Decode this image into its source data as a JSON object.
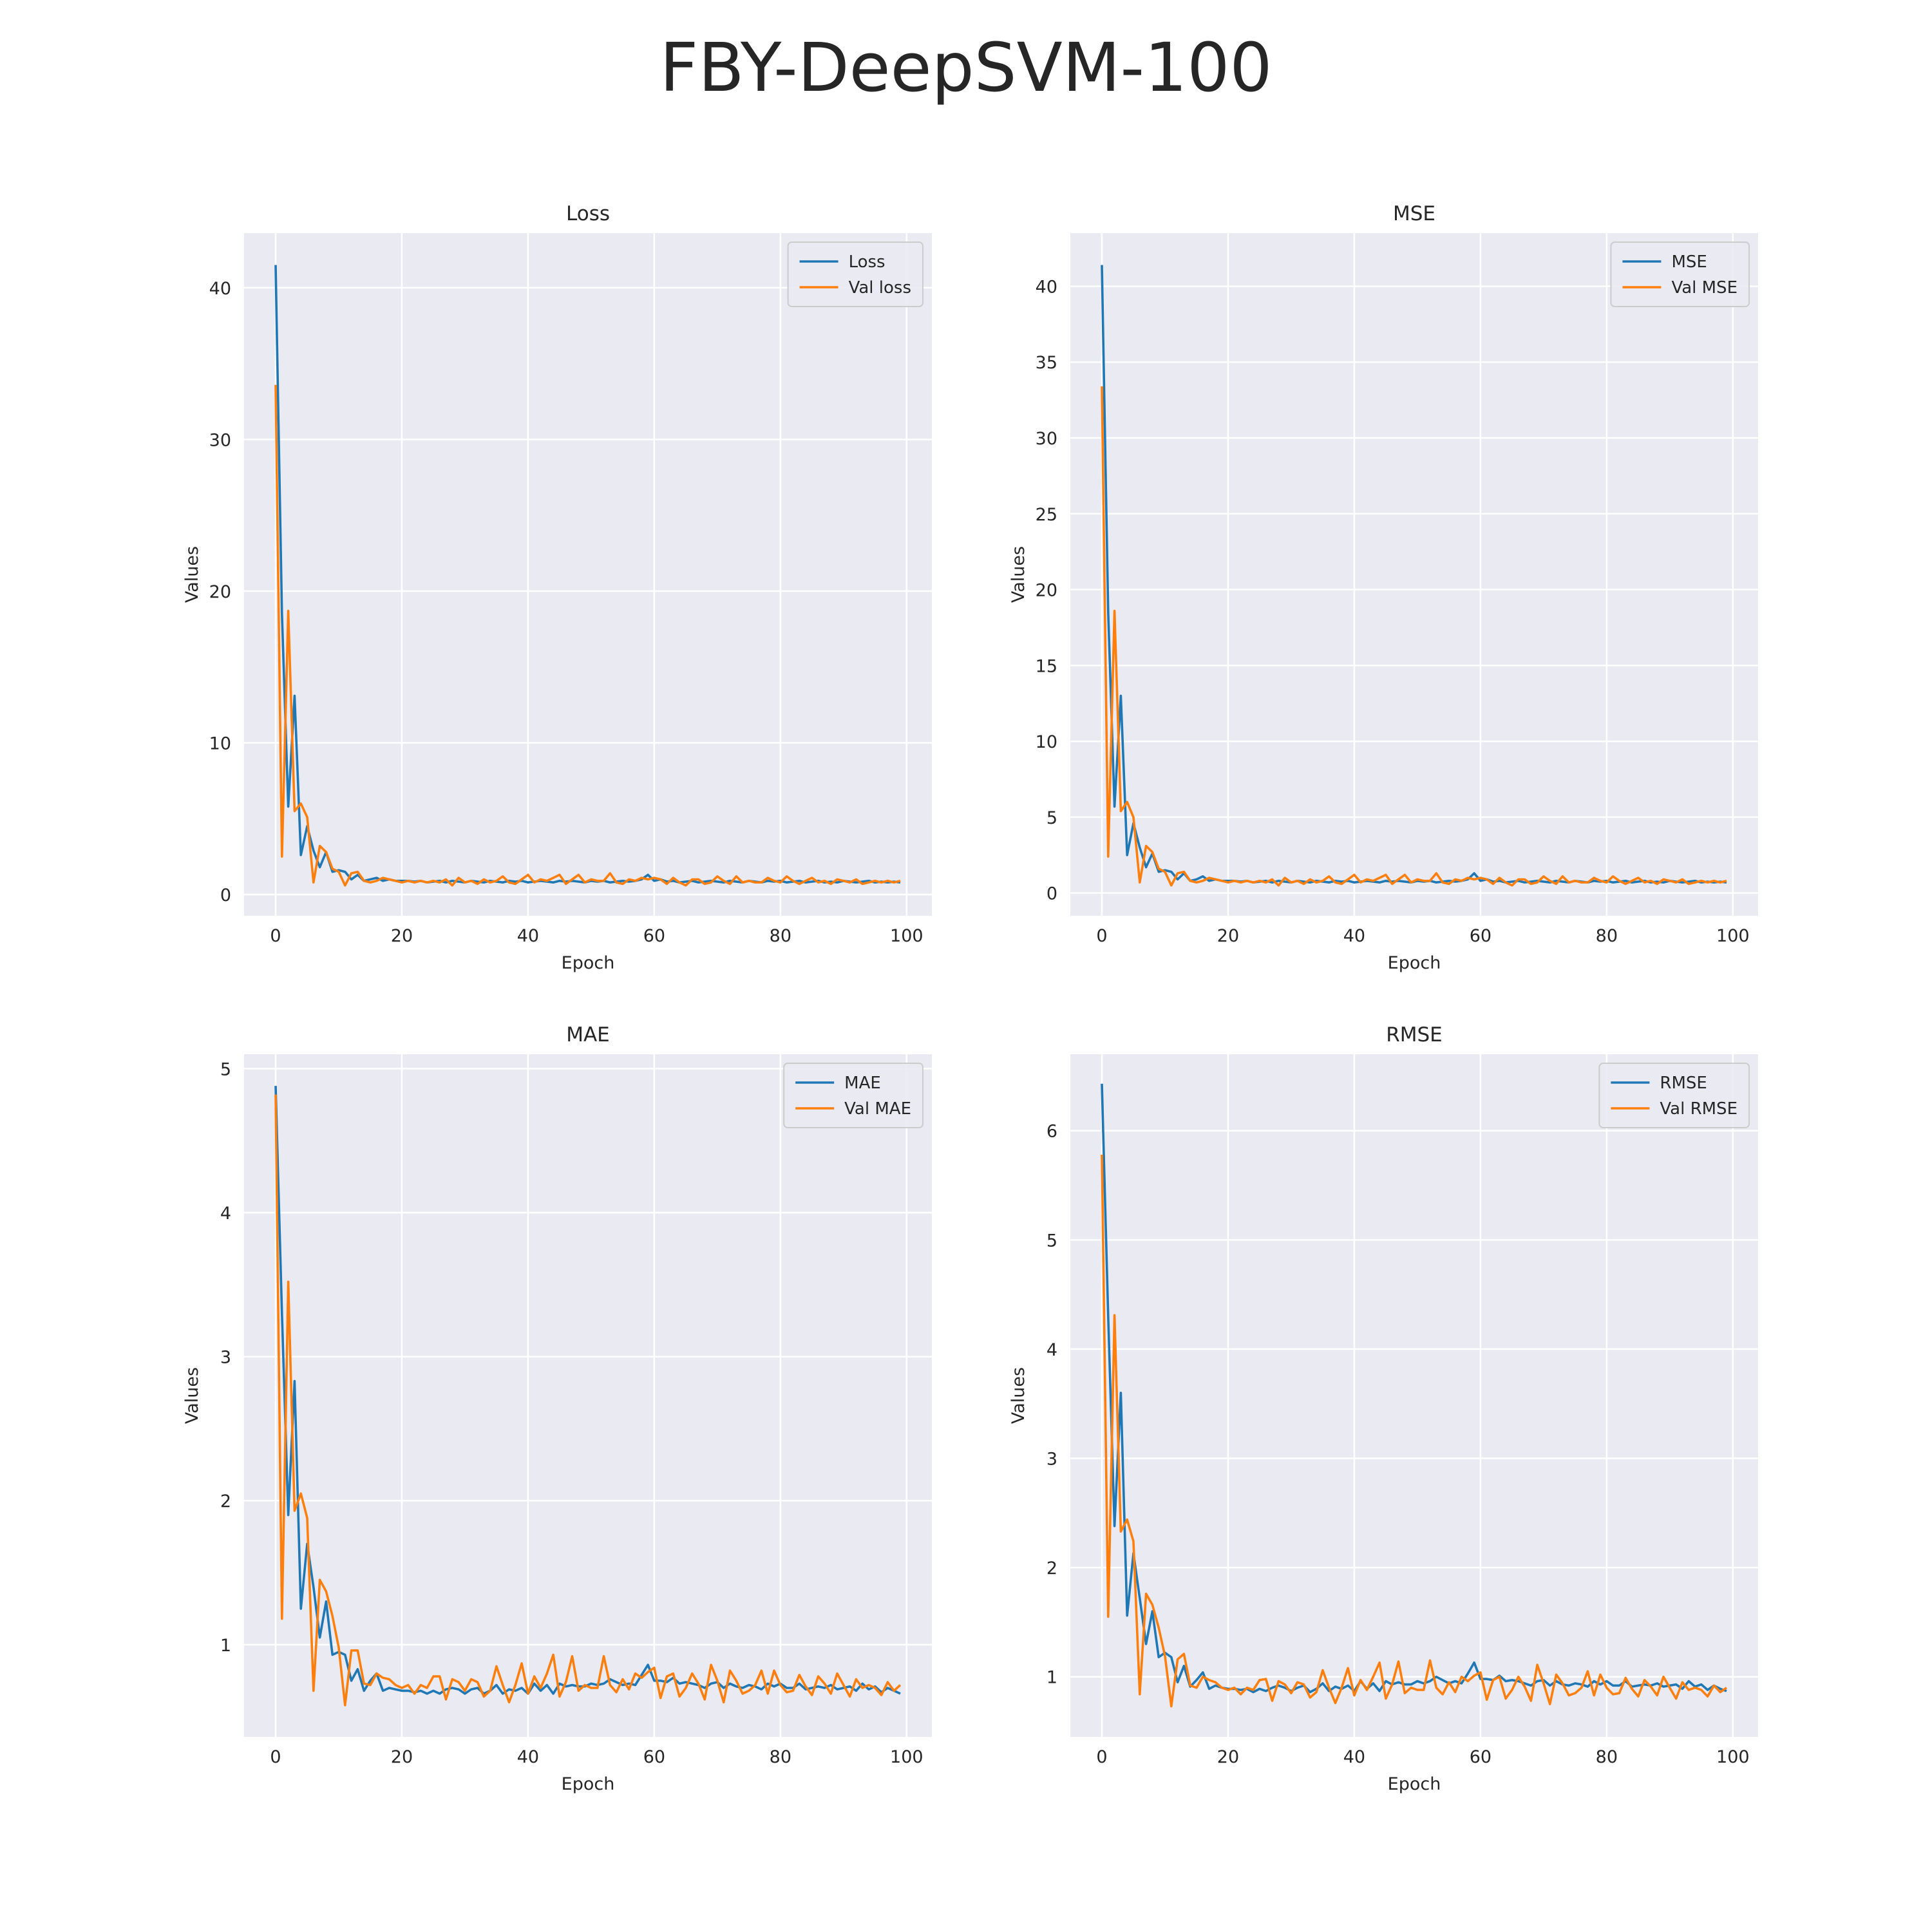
{
  "figure": {
    "title": "FBY-DeepSVM-100"
  },
  "colors": {
    "train": "#1f77b4",
    "val": "#ff7f0e",
    "panel_bg": "#eaeaf2",
    "grid": "#ffffff"
  },
  "chart_data": [
    {
      "type": "line",
      "title": "Loss",
      "xlabel": "Epoch",
      "ylabel": "Values",
      "xlim": [
        -5,
        104
      ],
      "ylim": [
        -1.4,
        43.6
      ],
      "xticks": [
        0,
        20,
        40,
        60,
        80,
        100
      ],
      "yticks": [
        0,
        10,
        20,
        30,
        40
      ],
      "grid": true,
      "legend_position": "top-right",
      "series": [
        {
          "name": "Loss",
          "color_key": "train",
          "x_start": 0,
          "values": [
            41.5,
            18.5,
            5.8,
            13.1,
            2.6,
            4.5,
            2.9,
            1.8,
            2.8,
            1.5,
            1.6,
            1.5,
            1.0,
            1.3,
            0.9,
            1.0,
            1.1,
            0.9,
            1.0,
            0.9,
            0.9,
            0.9,
            0.85,
            0.9,
            0.8,
            0.85,
            0.9,
            0.8,
            0.9,
            0.85,
            0.8,
            0.9,
            0.85,
            0.8,
            0.9,
            0.85,
            0.8,
            0.9,
            0.85,
            0.9,
            0.8,
            0.85,
            0.9,
            0.85,
            0.8,
            0.9,
            0.85,
            0.9,
            0.85,
            0.8,
            0.9,
            0.85,
            0.9,
            0.8,
            0.85,
            0.9,
            0.85,
            0.9,
            1.0,
            1.3,
            0.9,
            1.0,
            0.85,
            0.9,
            0.8,
            0.85,
            0.9,
            0.8,
            0.85,
            0.9,
            0.85,
            0.8,
            0.9,
            0.85,
            0.8,
            0.9,
            0.85,
            0.8,
            0.9,
            0.85,
            0.9,
            0.8,
            0.85,
            0.9,
            0.8,
            0.85,
            0.9,
            0.8,
            0.85,
            0.8,
            0.9,
            0.85,
            0.8,
            0.85,
            0.9,
            0.8,
            0.85,
            0.8,
            0.85,
            0.8
          ]
        },
        {
          "name": "Val loss",
          "color_key": "val",
          "x_start": 0,
          "values": [
            33.6,
            2.5,
            18.7,
            5.5,
            6.0,
            5.1,
            0.8,
            3.2,
            2.8,
            1.7,
            1.5,
            0.6,
            1.4,
            1.5,
            0.9,
            0.8,
            0.9,
            1.1,
            1.0,
            0.9,
            0.8,
            0.9,
            0.8,
            0.9,
            0.8,
            0.9,
            0.8,
            1.0,
            0.6,
            1.1,
            0.8,
            0.9,
            0.7,
            1.0,
            0.8,
            0.9,
            1.2,
            0.8,
            0.7,
            1.0,
            1.3,
            0.8,
            1.0,
            0.9,
            1.1,
            1.3,
            0.7,
            1.0,
            1.3,
            0.8,
            1.0,
            0.9,
            0.9,
            1.4,
            0.8,
            0.7,
            1.0,
            0.9,
            1.1,
            1.0,
            1.1,
            1.0,
            0.7,
            1.1,
            0.8,
            0.6,
            1.0,
            1.0,
            0.7,
            0.8,
            1.2,
            0.9,
            0.7,
            1.2,
            0.8,
            0.9,
            0.8,
            0.8,
            1.1,
            0.9,
            0.8,
            1.2,
            0.9,
            0.7,
            0.9,
            1.1,
            0.8,
            0.9,
            0.7,
            1.0,
            0.9,
            0.8,
            1.0,
            0.7,
            0.8,
            0.9,
            0.8,
            0.9,
            0.8,
            0.9
          ]
        }
      ]
    },
    {
      "type": "line",
      "title": "MSE",
      "xlabel": "Epoch",
      "ylabel": "Values",
      "xlim": [
        -5,
        104
      ],
      "ylim": [
        -1.5,
        43.5
      ],
      "xticks": [
        0,
        20,
        40,
        60,
        80,
        100
      ],
      "yticks": [
        0,
        5,
        10,
        15,
        20,
        25,
        30,
        35,
        40
      ],
      "grid": true,
      "legend_position": "top-right",
      "series": [
        {
          "name": "MSE",
          "color_key": "train",
          "x_start": 0,
          "values": [
            41.4,
            18.5,
            5.7,
            13.0,
            2.5,
            4.6,
            3.0,
            1.7,
            2.6,
            1.4,
            1.5,
            1.4,
            0.9,
            1.3,
            0.8,
            0.9,
            1.1,
            0.8,
            0.9,
            0.8,
            0.8,
            0.8,
            0.75,
            0.8,
            0.7,
            0.75,
            0.8,
            0.7,
            0.8,
            0.75,
            0.7,
            0.8,
            0.75,
            0.7,
            0.8,
            0.75,
            0.7,
            0.8,
            0.75,
            0.8,
            0.7,
            0.75,
            0.8,
            0.75,
            0.7,
            0.8,
            0.75,
            0.8,
            0.75,
            0.7,
            0.8,
            0.75,
            0.8,
            0.7,
            0.75,
            0.8,
            0.75,
            0.8,
            0.9,
            1.3,
            0.8,
            0.9,
            0.75,
            0.8,
            0.7,
            0.75,
            0.8,
            0.7,
            0.75,
            0.8,
            0.75,
            0.7,
            0.8,
            0.75,
            0.7,
            0.8,
            0.75,
            0.7,
            0.8,
            0.75,
            0.8,
            0.7,
            0.75,
            0.8,
            0.7,
            0.75,
            0.8,
            0.7,
            0.75,
            0.7,
            0.8,
            0.75,
            0.7,
            0.75,
            0.8,
            0.7,
            0.75,
            0.7,
            0.75,
            0.7
          ]
        },
        {
          "name": "Val MSE",
          "color_key": "val",
          "x_start": 0,
          "values": [
            33.4,
            2.4,
            18.6,
            5.4,
            6.0,
            5.0,
            0.7,
            3.1,
            2.7,
            1.6,
            1.4,
            0.5,
            1.3,
            1.4,
            0.8,
            0.7,
            0.8,
            1.0,
            0.9,
            0.8,
            0.7,
            0.8,
            0.7,
            0.8,
            0.7,
            0.8,
            0.7,
            0.9,
            0.5,
            1.0,
            0.7,
            0.8,
            0.6,
            0.9,
            0.7,
            0.8,
            1.1,
            0.7,
            0.6,
            0.9,
            1.2,
            0.7,
            0.9,
            0.8,
            1.0,
            1.2,
            0.6,
            0.9,
            1.2,
            0.7,
            0.9,
            0.8,
            0.8,
            1.3,
            0.7,
            0.6,
            0.9,
            0.8,
            1.0,
            0.9,
            1.0,
            0.9,
            0.6,
            1.0,
            0.7,
            0.5,
            0.9,
            0.9,
            0.6,
            0.7,
            1.1,
            0.8,
            0.6,
            1.1,
            0.7,
            0.8,
            0.7,
            0.7,
            1.0,
            0.8,
            0.7,
            1.1,
            0.8,
            0.6,
            0.8,
            1.0,
            0.7,
            0.8,
            0.6,
            0.9,
            0.8,
            0.7,
            0.9,
            0.6,
            0.7,
            0.8,
            0.7,
            0.8,
            0.7,
            0.8
          ]
        }
      ]
    },
    {
      "type": "line",
      "title": "MAE",
      "xlabel": "Epoch",
      "ylabel": "Values",
      "xlim": [
        -5,
        104
      ],
      "ylim": [
        0.36,
        5.1
      ],
      "xticks": [
        0,
        20,
        40,
        60,
        80,
        100
      ],
      "yticks": [
        1,
        2,
        3,
        4,
        5
      ],
      "grid": true,
      "legend_position": "top-right",
      "series": [
        {
          "name": "MAE",
          "color_key": "train",
          "x_start": 0,
          "values": [
            4.88,
            3.3,
            1.9,
            2.83,
            1.25,
            1.7,
            1.4,
            1.05,
            1.3,
            0.93,
            0.95,
            0.93,
            0.75,
            0.83,
            0.68,
            0.75,
            0.8,
            0.68,
            0.7,
            0.69,
            0.68,
            0.68,
            0.67,
            0.68,
            0.66,
            0.68,
            0.66,
            0.69,
            0.7,
            0.69,
            0.66,
            0.69,
            0.7,
            0.66,
            0.68,
            0.72,
            0.66,
            0.69,
            0.68,
            0.7,
            0.66,
            0.73,
            0.68,
            0.72,
            0.66,
            0.73,
            0.71,
            0.72,
            0.71,
            0.71,
            0.73,
            0.72,
            0.73,
            0.76,
            0.74,
            0.72,
            0.73,
            0.72,
            0.79,
            0.86,
            0.75,
            0.75,
            0.74,
            0.77,
            0.73,
            0.74,
            0.73,
            0.72,
            0.7,
            0.73,
            0.74,
            0.7,
            0.73,
            0.71,
            0.7,
            0.72,
            0.71,
            0.69,
            0.73,
            0.71,
            0.73,
            0.7,
            0.7,
            0.73,
            0.69,
            0.7,
            0.71,
            0.7,
            0.72,
            0.69,
            0.7,
            0.71,
            0.68,
            0.73,
            0.69,
            0.71,
            0.67,
            0.7,
            0.68,
            0.66
          ]
        },
        {
          "name": "Val MAE",
          "color_key": "val",
          "x_start": 0,
          "values": [
            4.82,
            1.18,
            3.52,
            1.93,
            2.05,
            1.88,
            0.68,
            1.45,
            1.37,
            1.2,
            0.98,
            0.58,
            0.96,
            0.96,
            0.73,
            0.72,
            0.8,
            0.77,
            0.76,
            0.72,
            0.7,
            0.72,
            0.66,
            0.72,
            0.7,
            0.78,
            0.78,
            0.62,
            0.76,
            0.74,
            0.68,
            0.76,
            0.74,
            0.64,
            0.68,
            0.85,
            0.72,
            0.6,
            0.72,
            0.87,
            0.66,
            0.78,
            0.7,
            0.8,
            0.93,
            0.64,
            0.74,
            0.92,
            0.68,
            0.72,
            0.7,
            0.7,
            0.92,
            0.72,
            0.67,
            0.76,
            0.69,
            0.8,
            0.77,
            0.81,
            0.84,
            0.63,
            0.78,
            0.8,
            0.64,
            0.7,
            0.8,
            0.73,
            0.62,
            0.86,
            0.75,
            0.6,
            0.82,
            0.75,
            0.66,
            0.68,
            0.72,
            0.82,
            0.66,
            0.82,
            0.72,
            0.67,
            0.68,
            0.79,
            0.71,
            0.65,
            0.78,
            0.73,
            0.66,
            0.8,
            0.72,
            0.64,
            0.76,
            0.7,
            0.72,
            0.7,
            0.65,
            0.74,
            0.68,
            0.72
          ]
        }
      ]
    },
    {
      "type": "line",
      "title": "RMSE",
      "xlabel": "Epoch",
      "ylabel": "Values",
      "xlim": [
        -5,
        104
      ],
      "ylim": [
        0.45,
        6.7
      ],
      "xticks": [
        0,
        20,
        40,
        60,
        80,
        100
      ],
      "yticks": [
        1,
        2,
        3,
        4,
        5,
        6
      ],
      "grid": true,
      "legend_position": "top-right",
      "series": [
        {
          "name": "RMSE",
          "color_key": "train",
          "x_start": 0,
          "values": [
            6.43,
            4.3,
            2.38,
            3.6,
            1.56,
            2.13,
            1.72,
            1.3,
            1.6,
            1.18,
            1.22,
            1.18,
            0.95,
            1.1,
            0.91,
            0.97,
            1.04,
            0.89,
            0.92,
            0.9,
            0.89,
            0.89,
            0.88,
            0.89,
            0.86,
            0.89,
            0.87,
            0.9,
            0.92,
            0.9,
            0.87,
            0.9,
            0.92,
            0.86,
            0.89,
            0.94,
            0.87,
            0.91,
            0.89,
            0.92,
            0.87,
            0.96,
            0.89,
            0.94,
            0.87,
            0.96,
            0.93,
            0.95,
            0.93,
            0.93,
            0.96,
            0.94,
            0.96,
            1.0,
            0.97,
            0.94,
            0.96,
            0.94,
            1.03,
            1.13,
            0.98,
            0.98,
            0.97,
            1.01,
            0.96,
            0.97,
            0.96,
            0.94,
            0.92,
            0.96,
            0.97,
            0.92,
            0.96,
            0.93,
            0.92,
            0.94,
            0.93,
            0.91,
            0.96,
            0.93,
            0.96,
            0.92,
            0.92,
            0.96,
            0.91,
            0.92,
            0.93,
            0.92,
            0.94,
            0.91,
            0.92,
            0.93,
            0.89,
            0.96,
            0.91,
            0.93,
            0.88,
            0.92,
            0.89,
            0.87
          ]
        },
        {
          "name": "Val RMSE",
          "color_key": "val",
          "x_start": 0,
          "values": [
            5.78,
            1.55,
            4.31,
            2.33,
            2.44,
            2.24,
            0.84,
            1.76,
            1.66,
            1.45,
            1.19,
            0.73,
            1.16,
            1.21,
            0.92,
            0.9,
            1.0,
            0.97,
            0.95,
            0.9,
            0.88,
            0.9,
            0.84,
            0.9,
            0.88,
            0.97,
            0.98,
            0.78,
            0.96,
            0.93,
            0.85,
            0.95,
            0.93,
            0.81,
            0.86,
            1.06,
            0.9,
            0.76,
            0.9,
            1.08,
            0.83,
            0.97,
            0.88,
            1.0,
            1.13,
            0.8,
            0.93,
            1.14,
            0.85,
            0.9,
            0.88,
            0.88,
            1.15,
            0.9,
            0.84,
            0.95,
            0.86,
            1.0,
            0.96,
            1.01,
            1.04,
            0.79,
            0.97,
            1.0,
            0.8,
            0.88,
            1.0,
            0.91,
            0.78,
            1.11,
            0.94,
            0.75,
            1.02,
            0.94,
            0.83,
            0.85,
            0.9,
            1.05,
            0.83,
            1.02,
            0.9,
            0.84,
            0.85,
            0.99,
            0.89,
            0.82,
            0.97,
            0.91,
            0.83,
            1.0,
            0.9,
            0.8,
            0.95,
            0.88,
            0.9,
            0.88,
            0.82,
            0.92,
            0.86,
            0.9
          ]
        }
      ]
    }
  ]
}
